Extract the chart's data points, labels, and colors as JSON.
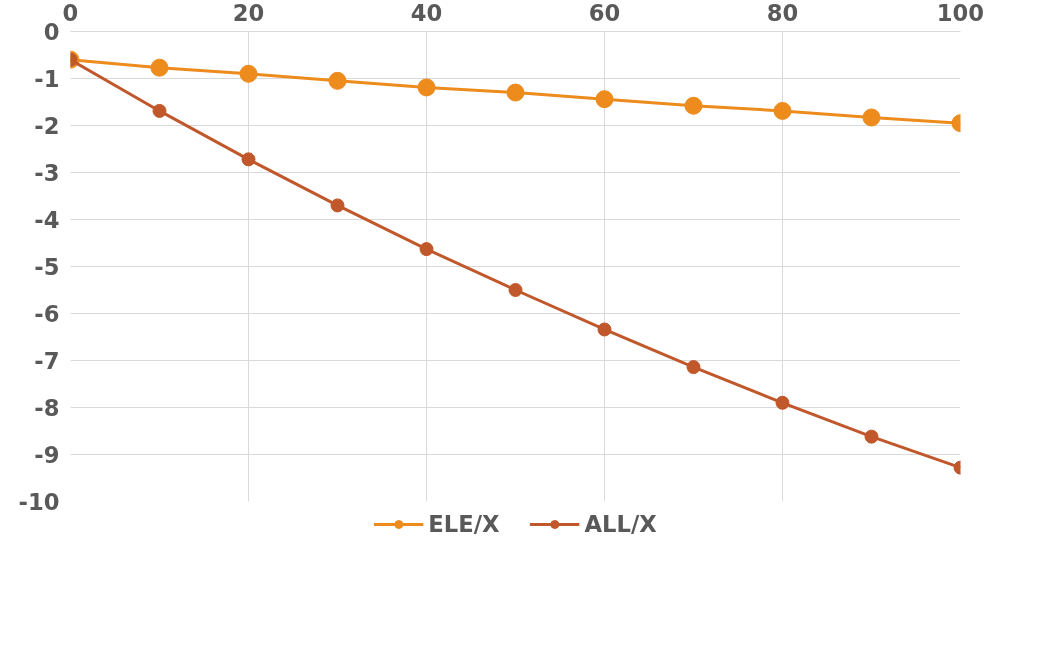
{
  "chart_data": {
    "type": "line",
    "x": [
      0,
      10,
      20,
      30,
      40,
      50,
      60,
      70,
      80,
      90,
      100
    ],
    "series": [
      {
        "name": "ELE/X",
        "color": "#ed8b1d",
        "values": [
          -0.6,
          -0.77,
          -0.9,
          -1.05,
          -1.19,
          -1.3,
          -1.44,
          -1.58,
          -1.69,
          -1.83,
          -1.95
        ]
      },
      {
        "name": "ALL/X",
        "color": "#c0582b",
        "values": [
          -0.6,
          -1.69,
          -2.72,
          -3.7,
          -4.63,
          -5.5,
          -6.34,
          -7.14,
          -7.9,
          -8.62,
          -9.28
        ]
      }
    ],
    "xlim": [
      0,
      100
    ],
    "xticks": [
      0,
      20,
      40,
      60,
      80,
      100
    ],
    "ylim": [
      -10,
      0
    ],
    "yticks": [
      0,
      -1,
      -2,
      -3,
      -4,
      -5,
      -6,
      -7,
      -8,
      -9,
      -10
    ],
    "grid": true,
    "legend": "bottom",
    "marker": "circle",
    "line_style": "solid"
  }
}
